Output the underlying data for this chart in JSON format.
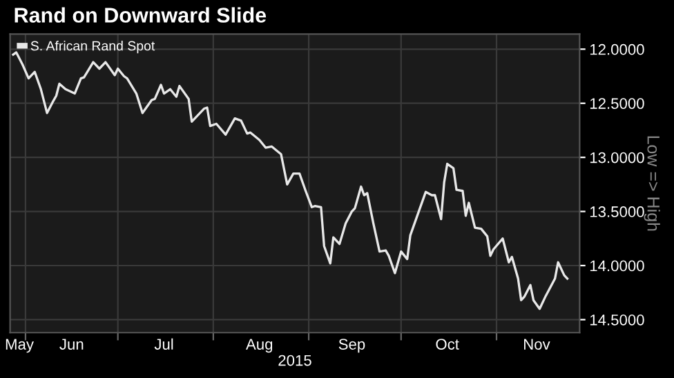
{
  "chart_data": {
    "type": "line",
    "title": "Rand on Downward Slide",
    "xlabel": "2015",
    "ylabel": "Low => High",
    "x": [
      "2015-05-28",
      "2015-05-29",
      "2015-05-31",
      "2015-06-02",
      "2015-06-04",
      "2015-06-06",
      "2015-06-08",
      "2015-06-10",
      "2015-06-11",
      "2015-06-12",
      "2015-06-14",
      "2015-06-17",
      "2015-06-19",
      "2015-06-20",
      "2015-06-23",
      "2015-06-25",
      "2015-06-27",
      "2015-06-30",
      "2015-07-01",
      "2015-07-03",
      "2015-07-04",
      "2015-07-07",
      "2015-07-09",
      "2015-07-12",
      "2015-07-13",
      "2015-07-15",
      "2015-07-16",
      "2015-07-18",
      "2015-07-20",
      "2015-07-21",
      "2015-07-24",
      "2015-07-25",
      "2015-07-29",
      "2015-07-30",
      "2015-07-31",
      "2015-08-02",
      "2015-08-05",
      "2015-08-08",
      "2015-08-10",
      "2015-08-12",
      "2015-08-13",
      "2015-08-16",
      "2015-08-18",
      "2015-08-20",
      "2015-08-23",
      "2015-08-25",
      "2015-08-27",
      "2015-08-29",
      "2015-08-31",
      "2015-09-02",
      "2015-09-03",
      "2015-09-05",
      "2015-09-06",
      "2015-09-08",
      "2015-09-09",
      "2015-09-11",
      "2015-09-13",
      "2015-09-15",
      "2015-09-16",
      "2015-09-18",
      "2015-09-19",
      "2015-09-20",
      "2015-09-22",
      "2015-09-24",
      "2015-09-26",
      "2015-09-27",
      "2015-09-29",
      "2015-10-01",
      "2015-10-03",
      "2015-10-04",
      "2015-10-07",
      "2015-10-09",
      "2015-10-11",
      "2015-10-12",
      "2015-10-14",
      "2015-10-15",
      "2015-10-16",
      "2015-10-18",
      "2015-10-19",
      "2015-10-21",
      "2015-10-22",
      "2015-10-23",
      "2015-10-25",
      "2015-10-27",
      "2015-10-29",
      "2015-10-30",
      "2015-10-31",
      "2015-11-03",
      "2015-11-05",
      "2015-11-06",
      "2015-11-08",
      "2015-11-09",
      "2015-11-10",
      "2015-11-12",
      "2015-11-13",
      "2015-11-15",
      "2015-11-17",
      "2015-11-20",
      "2015-11-21",
      "2015-11-23",
      "2015-11-24"
    ],
    "series": [
      {
        "name": "S. African Rand Spot",
        "color": "#e8e8e8",
        "values": [
          12.05,
          12.03,
          12.14,
          12.27,
          12.21,
          12.37,
          12.59,
          12.48,
          12.43,
          12.32,
          12.37,
          12.41,
          12.27,
          12.26,
          12.12,
          12.18,
          12.12,
          12.24,
          12.18,
          12.25,
          12.27,
          12.41,
          12.59,
          12.47,
          12.46,
          12.33,
          12.41,
          12.37,
          12.44,
          12.34,
          12.46,
          12.67,
          12.55,
          12.54,
          12.71,
          12.69,
          12.79,
          12.64,
          12.66,
          12.78,
          12.77,
          12.84,
          12.91,
          12.9,
          12.97,
          13.25,
          13.15,
          13.15,
          13.31,
          13.46,
          13.45,
          13.46,
          13.82,
          13.98,
          13.74,
          13.8,
          13.61,
          13.5,
          13.47,
          13.27,
          13.35,
          13.33,
          13.61,
          13.87,
          13.86,
          13.91,
          14.07,
          13.87,
          13.94,
          13.72,
          13.48,
          13.32,
          13.35,
          13.35,
          13.57,
          13.23,
          13.06,
          13.1,
          13.3,
          13.31,
          13.54,
          13.42,
          13.65,
          13.66,
          13.73,
          13.91,
          13.85,
          13.75,
          13.97,
          13.92,
          14.12,
          14.32,
          14.29,
          14.18,
          14.32,
          14.4,
          14.28,
          14.12,
          13.97,
          14.09,
          14.12
        ]
      }
    ],
    "xlim": [
      "2015-05-27",
      "2015-11-28"
    ],
    "xticks": [
      {
        "value": "2015-06-01",
        "label": null
      },
      {
        "value": "2015-07-01",
        "label": null
      },
      {
        "value": "2015-08-01",
        "label": null
      },
      {
        "value": "2015-09-01",
        "label": null
      },
      {
        "value": "2015-10-01",
        "label": null
      },
      {
        "value": "2015-11-01",
        "label": null
      },
      {
        "value": "2015-05-30",
        "label": "May"
      },
      {
        "value": "2015-06-16",
        "label": "Jun"
      },
      {
        "value": "2015-07-16",
        "label": "Jul"
      },
      {
        "value": "2015-08-16",
        "label": "Aug"
      },
      {
        "value": "2015-09-15",
        "label": "Sep"
      },
      {
        "value": "2015-10-16",
        "label": "Oct"
      },
      {
        "value": "2015-11-14",
        "label": "Nov"
      }
    ],
    "ylim": [
      14.62,
      11.86
    ],
    "yticks": [
      {
        "value": 12,
        "label": "12.0000"
      },
      {
        "value": 12.5,
        "label": "12.5000"
      },
      {
        "value": 13,
        "label": "13.0000"
      },
      {
        "value": 13.5,
        "label": "13.5000"
      },
      {
        "value": 14,
        "label": "14.0000"
      },
      {
        "value": 14.5,
        "label": "14.5000"
      }
    ],
    "grid": true,
    "legend": "top left",
    "marker": "none",
    "line_style": "solid"
  }
}
